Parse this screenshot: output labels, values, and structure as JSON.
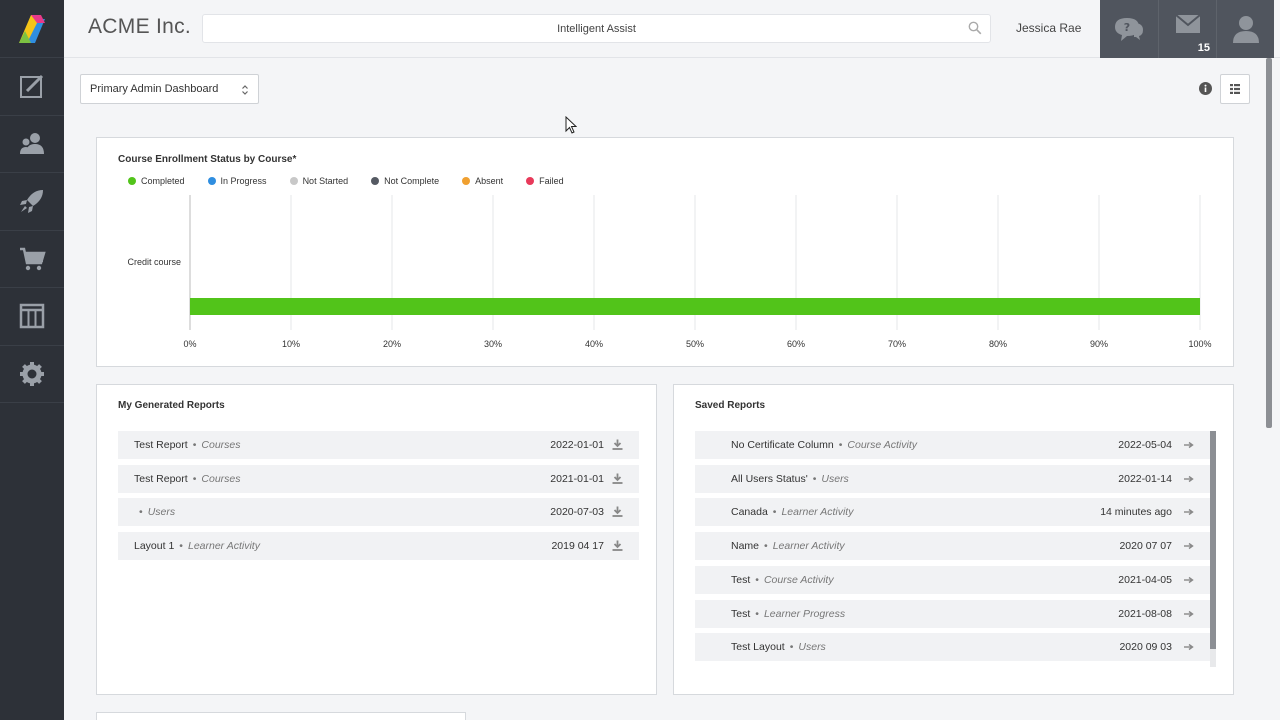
{
  "header": {
    "brand": "ACME Inc.",
    "search_placeholder": "Intelligent Assist",
    "username": "Jessica Rae",
    "messages_count": "15"
  },
  "sidebar": {
    "items": [
      {
        "icon": "edit-icon"
      },
      {
        "icon": "users-icon"
      },
      {
        "icon": "rocket-icon"
      },
      {
        "icon": "cart-icon"
      },
      {
        "icon": "columns-icon"
      },
      {
        "icon": "gear-icon"
      }
    ]
  },
  "dashboard_select": {
    "value": "Primary Admin Dashboard"
  },
  "enrollment_chart": {
    "title": "Course Enrollment Status by Course*",
    "legend": [
      {
        "label": "Completed",
        "color": "#52c41a"
      },
      {
        "label": "In Progress",
        "color": "#2f8ee0"
      },
      {
        "label": "Not Started",
        "color": "#c8c8c8"
      },
      {
        "label": "Not Complete",
        "color": "#555a63"
      },
      {
        "label": "Absent",
        "color": "#f0a030"
      },
      {
        "label": "Failed",
        "color": "#e83a5a"
      }
    ]
  },
  "chart_data": {
    "type": "bar",
    "orientation": "horizontal",
    "stacked": true,
    "categories": [
      "Credit course"
    ],
    "series": [
      {
        "name": "Completed",
        "values": [
          100
        ]
      },
      {
        "name": "In Progress",
        "values": [
          0
        ]
      },
      {
        "name": "Not Started",
        "values": [
          0
        ]
      },
      {
        "name": "Not Complete",
        "values": [
          0
        ]
      },
      {
        "name": "Absent",
        "values": [
          0
        ]
      },
      {
        "name": "Failed",
        "values": [
          0
        ]
      }
    ],
    "xticks": [
      "0%",
      "10%",
      "20%",
      "30%",
      "40%",
      "50%",
      "60%",
      "70%",
      "80%",
      "90%",
      "100%"
    ],
    "xlim": [
      0,
      100
    ],
    "title": "Course Enrollment Status by Course*",
    "legend_position": "top-left",
    "grid": true
  },
  "generated_reports": {
    "title": "My Generated Reports",
    "rows": [
      {
        "name": "Test Report",
        "category": "Courses",
        "date": "2022-01-01"
      },
      {
        "name": "Test Report",
        "category": "Courses",
        "date": "2021-01-01"
      },
      {
        "name": "",
        "category": "Users",
        "date": "2020-07-03"
      },
      {
        "name": "Layout 1",
        "category": "Learner Activity",
        "date": "2019 04 17"
      }
    ]
  },
  "saved_reports": {
    "title": "Saved Reports",
    "rows": [
      {
        "name": "No Certificate Column",
        "category": "Course Activity",
        "date": "2022-05-04"
      },
      {
        "name": "All Users Status'",
        "category": "Users",
        "date": "2022-01-14"
      },
      {
        "name": "Canada",
        "category": "Learner Activity",
        "date": "14 minutes ago"
      },
      {
        "name": "Name",
        "category": "Learner Activity",
        "date": "2020 07 07"
      },
      {
        "name": "Test",
        "category": "Course Activity",
        "date": "2021-04-05"
      },
      {
        "name": "Test",
        "category": "Learner Progress",
        "date": "2021-08-08"
      },
      {
        "name": "Test Layout",
        "category": "Users",
        "date": "2020 09 03"
      }
    ]
  }
}
